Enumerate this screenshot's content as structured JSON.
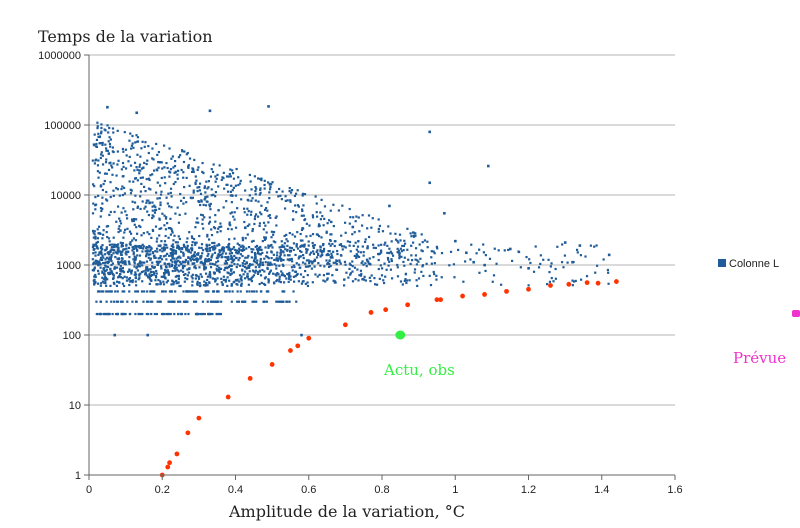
{
  "chart_data": {
    "type": "scatter",
    "title": "Temps de la variation",
    "xlabel": "Amplitude de la variation, °C",
    "ylabel": "Temps de la variation",
    "xlim": [
      0,
      1.6
    ],
    "ylim": [
      1,
      1000000
    ],
    "yscale": "log",
    "x_ticks": [
      "0",
      "0.2",
      "0.4",
      "0.6",
      "0.8",
      "1",
      "1.2",
      "1.4",
      "1.6"
    ],
    "y_ticks": [
      "1",
      "10",
      "100",
      "1000",
      "10000",
      "100000",
      "1000000"
    ],
    "grid": true,
    "legend": {
      "position": "right",
      "entries": [
        "Colonne L"
      ]
    },
    "colors": {
      "cloud": "#1f5c99",
      "red": "#ff3300",
      "green": "#33ee44",
      "magenta": "#ee33cc"
    },
    "annotations": [
      "Actu, obs",
      "Prévue"
    ],
    "series": [
      {
        "name": "Colonne L",
        "kind": "dense-cloud",
        "description_x_range": [
          0.0,
          1.42
        ],
        "points": [
          [
            0.07,
            100
          ],
          [
            0.16,
            100
          ],
          [
            0.58,
            100
          ],
          [
            0.05,
            180000
          ],
          [
            0.13,
            150000
          ],
          [
            0.33,
            160000
          ],
          [
            0.49,
            185000
          ],
          [
            0.93,
            80000
          ],
          [
            1.09,
            26000
          ],
          [
            0.93,
            15000
          ],
          [
            0.97,
            5500
          ],
          [
            1.3,
            2100
          ],
          [
            1.34,
            1900
          ],
          [
            1.42,
            1400
          ],
          [
            1.32,
            1100
          ],
          [
            0.82,
            7000
          ],
          [
            0.72,
            3500
          ],
          [
            1.0,
            2200
          ],
          [
            1.03,
            1500
          ],
          [
            1.15,
            1700
          ],
          [
            1.08,
            1000
          ],
          [
            1.2,
            900
          ],
          [
            1.05,
            1100
          ]
        ]
      },
      {
        "name": "",
        "kind": "curve",
        "color": "red",
        "points": [
          [
            0.2,
            1.0
          ],
          [
            0.215,
            1.3
          ],
          [
            0.22,
            1.5
          ],
          [
            0.24,
            2.0
          ],
          [
            0.27,
            4.0
          ],
          [
            0.3,
            6.5
          ],
          [
            0.38,
            13
          ],
          [
            0.44,
            24
          ],
          [
            0.5,
            38
          ],
          [
            0.55,
            60
          ],
          [
            0.57,
            70
          ],
          [
            0.6,
            90
          ],
          [
            0.7,
            140
          ],
          [
            0.77,
            210
          ],
          [
            0.81,
            230
          ],
          [
            0.87,
            270
          ],
          [
            0.95,
            320
          ],
          [
            0.96,
            320
          ],
          [
            1.02,
            360
          ],
          [
            1.08,
            380
          ],
          [
            1.14,
            420
          ],
          [
            1.2,
            450
          ],
          [
            1.26,
            510
          ],
          [
            1.31,
            530
          ],
          [
            1.36,
            560
          ],
          [
            1.39,
            550
          ],
          [
            1.44,
            580
          ]
        ]
      },
      {
        "name": "",
        "kind": "single",
        "color": "green",
        "points": [
          [
            0.85,
            100
          ]
        ]
      }
    ]
  }
}
